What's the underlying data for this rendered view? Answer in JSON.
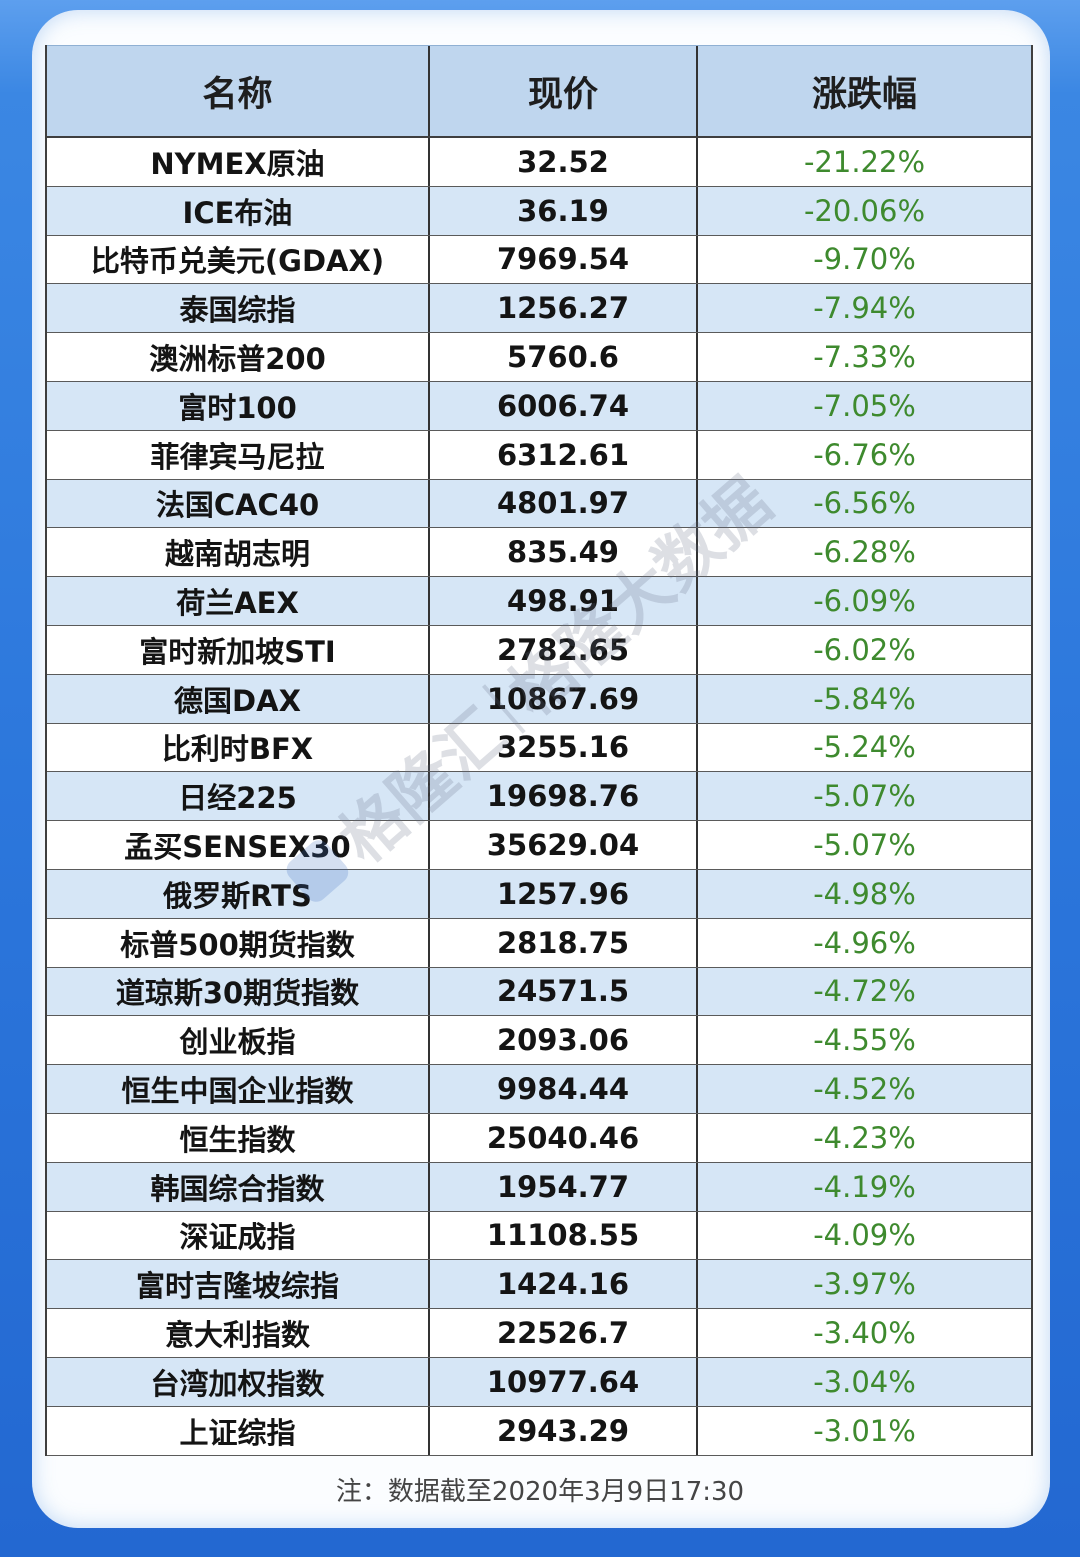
{
  "colors": {
    "page_background": "#2c77dc",
    "header_bg": "#bfd6ee",
    "row_alt_bg": "#d6e6f6",
    "change_text": "#3e8a2e"
  },
  "chart_data": {
    "type": "table",
    "columns": [
      "名称",
      "现价",
      "涨跌幅"
    ],
    "rows": [
      {
        "name": "NYMEX原油",
        "price": "32.52",
        "change": "-21.22%"
      },
      {
        "name": "ICE布油",
        "price": "36.19",
        "change": "-20.06%"
      },
      {
        "name": "比特币兑美元(GDAX)",
        "price": "7969.54",
        "change": "-9.70%"
      },
      {
        "name": "泰国综指",
        "price": "1256.27",
        "change": "-7.94%"
      },
      {
        "name": "澳洲标普200",
        "price": "5760.6",
        "change": "-7.33%"
      },
      {
        "name": "富时100",
        "price": "6006.74",
        "change": "-7.05%"
      },
      {
        "name": "菲律宾马尼拉",
        "price": "6312.61",
        "change": "-6.76%"
      },
      {
        "name": "法国CAC40",
        "price": "4801.97",
        "change": "-6.56%"
      },
      {
        "name": "越南胡志明",
        "price": "835.49",
        "change": "-6.28%"
      },
      {
        "name": "荷兰AEX",
        "price": "498.91",
        "change": "-6.09%"
      },
      {
        "name": "富时新加坡STI",
        "price": "2782.65",
        "change": "-6.02%"
      },
      {
        "name": "德国DAX",
        "price": "10867.69",
        "change": "-5.84%"
      },
      {
        "name": "比利时BFX",
        "price": "3255.16",
        "change": "-5.24%"
      },
      {
        "name": "日经225",
        "price": "19698.76",
        "change": "-5.07%"
      },
      {
        "name": "孟买SENSEX30",
        "price": "35629.04",
        "change": "-5.07%"
      },
      {
        "name": "俄罗斯RTS",
        "price": "1257.96",
        "change": "-4.98%"
      },
      {
        "name": "标普500期货指数",
        "price": "2818.75",
        "change": "-4.96%"
      },
      {
        "name": "道琼斯30期货指数",
        "price": "24571.5",
        "change": "-4.72%"
      },
      {
        "name": "创业板指",
        "price": "2093.06",
        "change": "-4.55%"
      },
      {
        "name": "恒生中国企业指数",
        "price": "9984.44",
        "change": "-4.52%"
      },
      {
        "name": "恒生指数",
        "price": "25040.46",
        "change": "-4.23%"
      },
      {
        "name": "韩国综合指数",
        "price": "1954.77",
        "change": "-4.19%"
      },
      {
        "name": "深证成指",
        "price": "11108.55",
        "change": "-4.09%"
      },
      {
        "name": "富时吉隆坡综指",
        "price": "1424.16",
        "change": "-3.97%"
      },
      {
        "name": "意大利指数",
        "price": "22526.7",
        "change": "-3.40%"
      },
      {
        "name": "台湾加权指数",
        "price": "10977.64",
        "change": "-3.04%"
      },
      {
        "name": "上证综指",
        "price": "2943.29",
        "change": "-3.01%"
      }
    ],
    "note": "注：数据截至2020年3月9日17:30"
  },
  "watermark": {
    "logo_icon": "brand-logo-icon",
    "brand": "格隆汇",
    "product": "格隆大数据"
  }
}
